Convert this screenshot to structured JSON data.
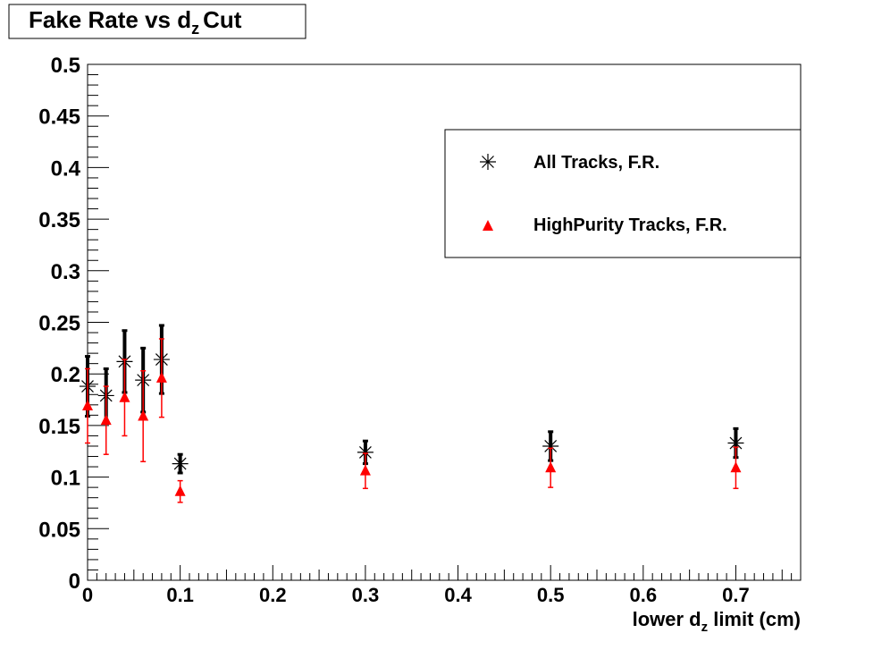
{
  "chart_data": {
    "type": "scatter",
    "title": {
      "main": "Fake Rate vs d",
      "sub": "z",
      "tail": "Cut"
    },
    "xlabel": {
      "main": "lower d",
      "sub": "z",
      "tail": " limit (cm)"
    },
    "ylabel": "",
    "xlim": [
      0,
      0.77
    ],
    "ylim": [
      0,
      0.5
    ],
    "x_ticks": [
      "0",
      "0.1",
      "0.2",
      "0.3",
      "0.4",
      "0.5",
      "0.6",
      "0.7"
    ],
    "y_ticks": [
      "0",
      "0.05",
      "0.1",
      "0.15",
      "0.2",
      "0.25",
      "0.3",
      "0.35",
      "0.4",
      "0.45",
      "0.5"
    ],
    "grid": false,
    "legend_position": "top-right",
    "series": [
      {
        "name": "All Tracks, F.R.",
        "color": "#000000",
        "marker": "asterisk",
        "x": [
          0,
          0.02,
          0.04,
          0.06,
          0.08,
          0.1,
          0.3,
          0.5,
          0.7
        ],
        "y": [
          0.188,
          0.179,
          0.212,
          0.194,
          0.214,
          0.113,
          0.124,
          0.13,
          0.133
        ],
        "yerr": [
          0.029,
          0.026,
          0.03,
          0.031,
          0.033,
          0.009,
          0.011,
          0.014,
          0.014
        ]
      },
      {
        "name": "HighPurity Tracks, F.R.",
        "color": "#ff0000",
        "marker": "triangle",
        "x": [
          0,
          0.02,
          0.04,
          0.06,
          0.08,
          0.1,
          0.3,
          0.5,
          0.7
        ],
        "y": [
          0.169,
          0.155,
          0.177,
          0.159,
          0.196,
          0.086,
          0.106,
          0.109,
          0.109
        ],
        "yerr": [
          0.036,
          0.033,
          0.037,
          0.044,
          0.038,
          0.0105,
          0.017,
          0.019,
          0.02
        ]
      }
    ]
  }
}
